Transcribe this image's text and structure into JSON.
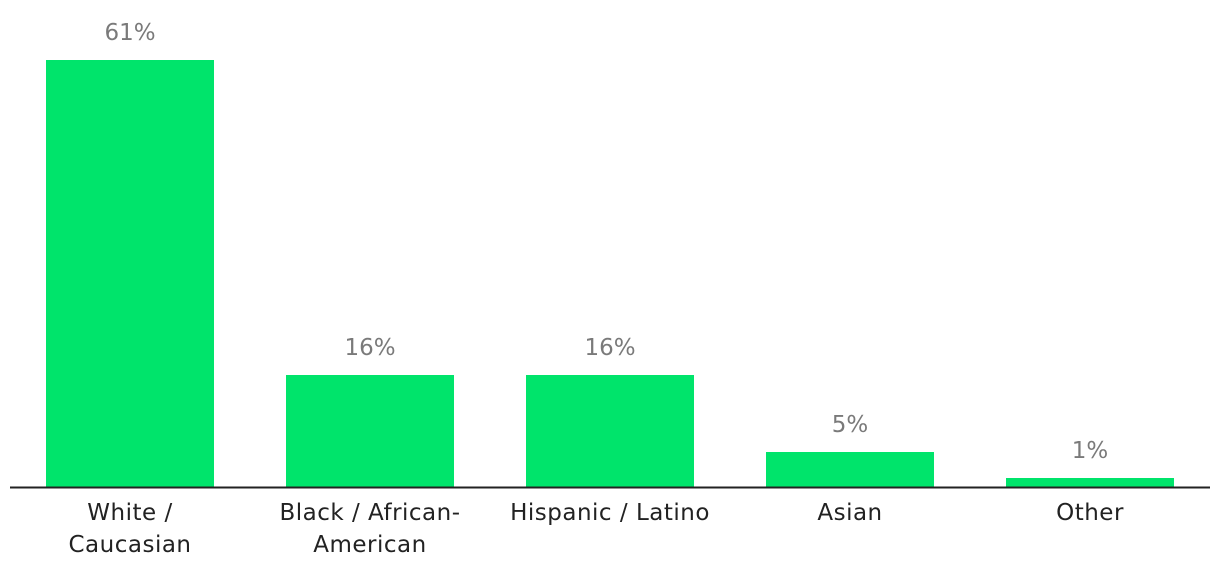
{
  "chart_data": {
    "type": "bar",
    "categories": [
      [
        "White /",
        "Caucasian"
      ],
      [
        "Black / African-",
        "American"
      ],
      [
        "Hispanic / Latino"
      ],
      [
        "Asian"
      ],
      [
        "Other"
      ]
    ],
    "values": [
      61,
      16,
      16,
      5,
      1
    ],
    "value_labels": [
      "61%",
      "16%",
      "16%",
      "5%",
      "1%"
    ],
    "bar_color": "#00e46b",
    "axis_color": "#222222",
    "value_label_color": "#7a7a7a",
    "ylim": [
      0,
      61
    ],
    "grid": false
  }
}
